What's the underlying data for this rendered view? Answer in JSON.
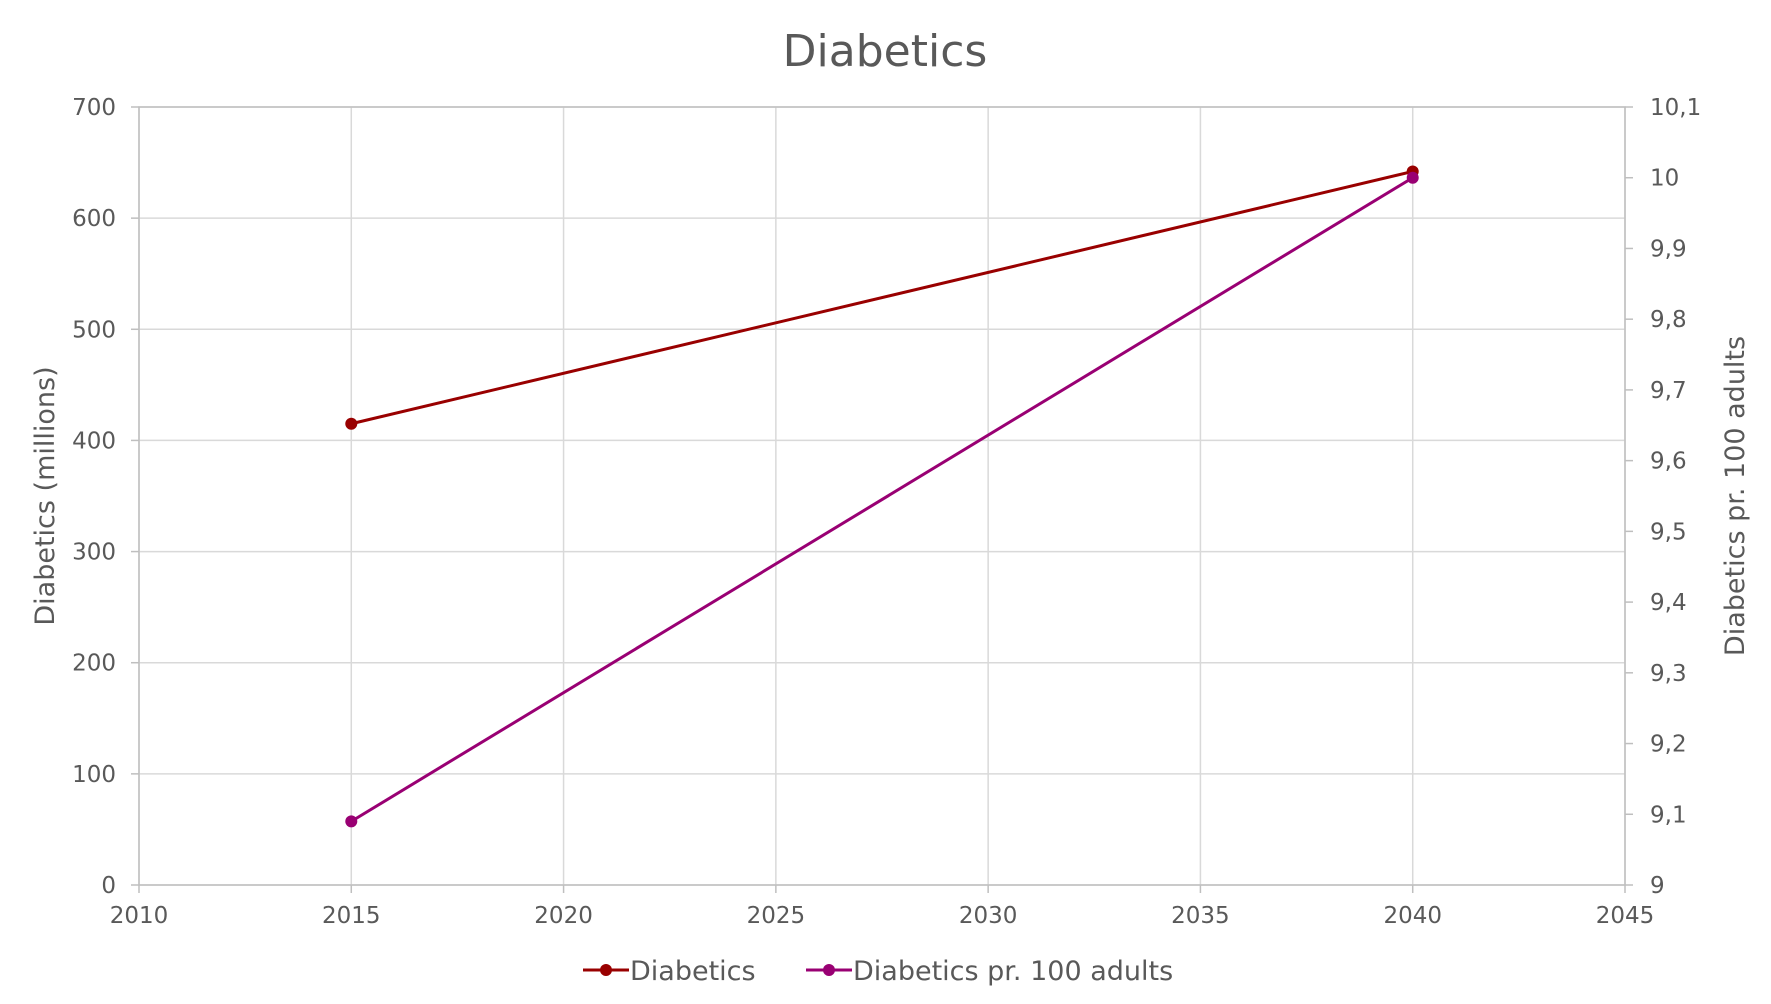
{
  "chart_data": {
    "type": "line",
    "title": "Diabetics",
    "x": [
      2015,
      2040
    ],
    "xlim": [
      2010,
      2045
    ],
    "x_ticks": [
      "2010",
      "2015",
      "2020",
      "2025",
      "2030",
      "2035",
      "2040",
      "2045"
    ],
    "ylim": [
      0,
      700
    ],
    "y_ticks": [
      "0",
      "100",
      "200",
      "300",
      "400",
      "500",
      "600",
      "700"
    ],
    "y2lim": [
      9,
      10.1
    ],
    "y2_ticks": [
      "9",
      "9,1",
      "9,2",
      "9,3",
      "9,4",
      "9,5",
      "9,6",
      "9,7",
      "9,8",
      "9,9",
      "10",
      "10,1"
    ],
    "ylabel": "Diabetics (millions)",
    "y2label": "Diabetics pr. 100 adults",
    "grid": true,
    "legend_position": "bottom",
    "series": [
      {
        "name": "Diabetics",
        "axis": "left",
        "color": "#990000",
        "values": [
          415,
          642
        ]
      },
      {
        "name": "Diabetics pr. 100 adults",
        "axis": "right",
        "color": "#990073",
        "values": [
          9.09,
          10.0
        ]
      }
    ]
  }
}
